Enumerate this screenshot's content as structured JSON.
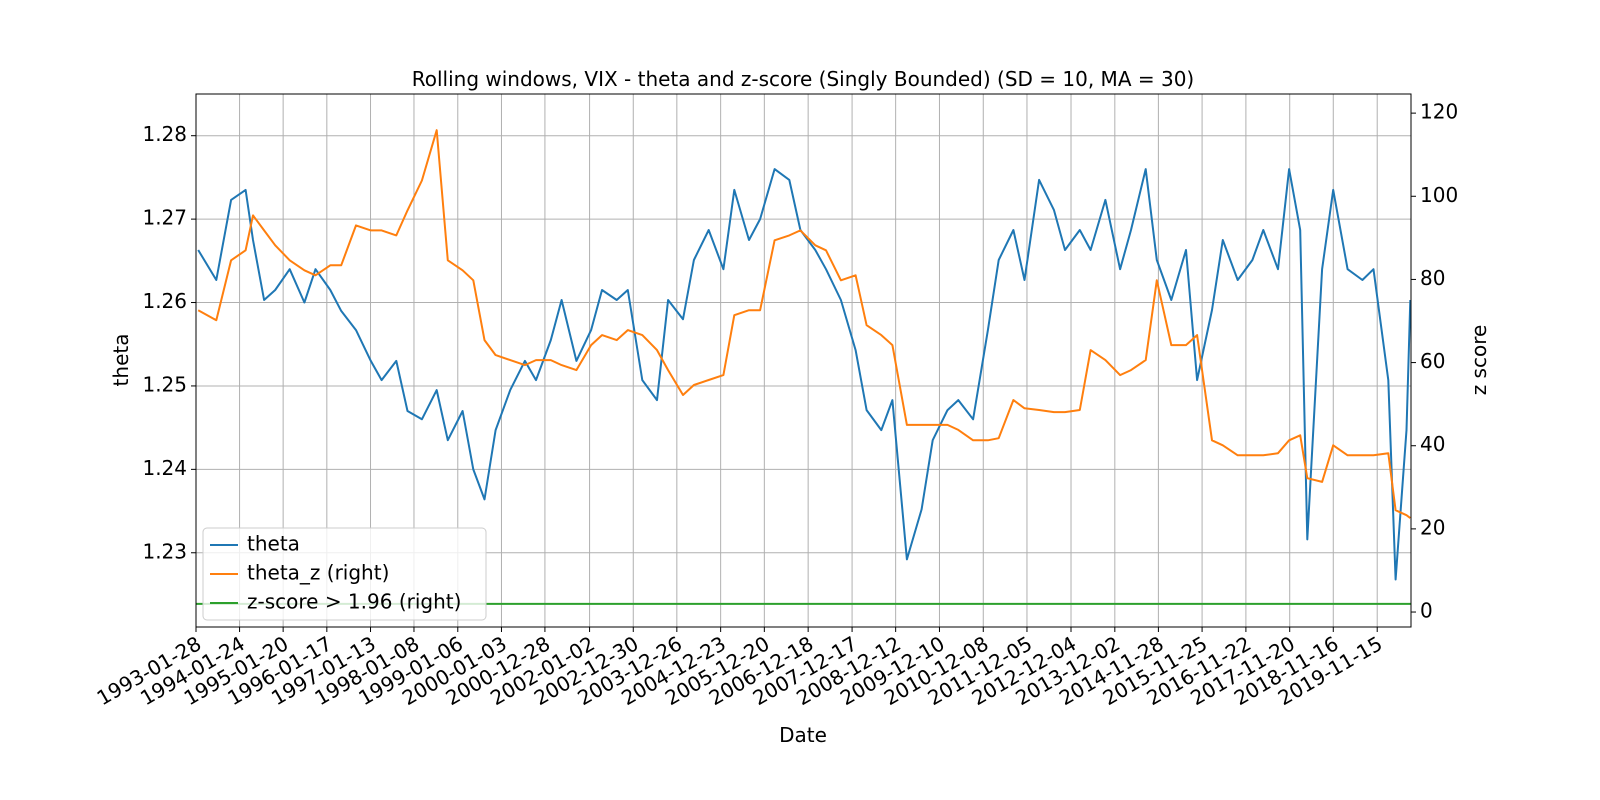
{
  "chart_data": {
    "type": "line",
    "title": "Rolling windows, VIX - theta and z-score (Singly Bounded) (SD = 10, MA = 30)",
    "xlabel": "Date",
    "ylabel": "theta",
    "y2label": "z score",
    "grid": true,
    "legend": "lower left",
    "xlim": [
      "1993-01-28",
      "2020-08-21"
    ],
    "xticks": [
      "1993-01-28",
      "1994-01-24",
      "1995-01-20",
      "1996-01-17",
      "1997-01-13",
      "1998-01-08",
      "1999-01-06",
      "2000-01-03",
      "2000-12-28",
      "2002-01-02",
      "2002-12-30",
      "2003-12-26",
      "2004-12-23",
      "2005-12-20",
      "2006-12-18",
      "2007-12-17",
      "2008-12-12",
      "2009-12-10",
      "2010-12-08",
      "2011-12-05",
      "2012-12-04",
      "2013-12-02",
      "2014-11-28",
      "2015-11-25",
      "2016-11-22",
      "2017-11-20",
      "2018-11-16",
      "2019-11-15"
    ],
    "ylim": [
      1.2211,
      1.285
    ],
    "yticks": [
      1.23,
      1.24,
      1.25,
      1.26,
      1.27,
      1.28
    ],
    "y2lim": [
      -3.6,
      124.6
    ],
    "y2ticks": [
      0,
      20,
      40,
      60,
      80,
      100,
      120
    ],
    "x": [
      "1993-02-15",
      "1993-07-15",
      "1993-11-15",
      "1994-03-15",
      "1994-05-15",
      "1994-08-15",
      "1994-11-15",
      "1995-03-15",
      "1995-07-15",
      "1995-10-15",
      "1996-02-15",
      "1996-05-15",
      "1996-09-15",
      "1997-01-15",
      "1997-04-15",
      "1997-08-15",
      "1997-11-15",
      "1998-03-15",
      "1998-07-15",
      "1998-10-15",
      "1999-02-15",
      "1999-05-15",
      "1999-08-15",
      "1999-11-15",
      "2000-03-15",
      "2000-07-15",
      "2000-10-15",
      "2001-02-15",
      "2001-05-15",
      "2001-09-15",
      "2002-01-15",
      "2002-04-15",
      "2002-08-15",
      "2002-11-15",
      "2003-03-15",
      "2003-07-15",
      "2003-10-15",
      "2004-02-15",
      "2004-05-15",
      "2004-09-15",
      "2005-01-15",
      "2005-04-15",
      "2005-08-15",
      "2005-11-15",
      "2006-03-15",
      "2006-07-15",
      "2006-10-15",
      "2007-02-15",
      "2007-05-15",
      "2007-09-15",
      "2008-01-15",
      "2008-04-15",
      "2008-08-15",
      "2008-11-15",
      "2009-03-15",
      "2009-07-15",
      "2009-10-15",
      "2010-02-15",
      "2010-05-15",
      "2010-09-15",
      "2011-01-15",
      "2011-04-15",
      "2011-08-15",
      "2011-11-15",
      "2012-03-15",
      "2012-07-15",
      "2012-10-15",
      "2013-02-15",
      "2013-05-15",
      "2013-09-15",
      "2014-01-15",
      "2014-04-15",
      "2014-08-15",
      "2014-11-15",
      "2015-03-15",
      "2015-07-15",
      "2015-10-15",
      "2016-02-15",
      "2016-05-15",
      "2016-09-15",
      "2017-01-15",
      "2017-04-15",
      "2017-08-15",
      "2017-11-15",
      "2018-02-15",
      "2018-04-15",
      "2018-08-15",
      "2018-11-15",
      "2019-03-15",
      "2019-07-15",
      "2019-10-15",
      "2020-02-15",
      "2020-04-15",
      "2020-07-15",
      "2020-08-15"
    ],
    "series": [
      {
        "name": "theta",
        "color": "#1f77b4",
        "axis": "y",
        "values": [
          1.2663,
          1.2627,
          1.2723,
          1.2735,
          1.2675,
          1.2603,
          1.2615,
          1.264,
          1.26,
          1.264,
          1.2615,
          1.259,
          1.2567,
          1.253,
          1.2507,
          1.253,
          1.247,
          1.246,
          1.2495,
          1.2435,
          1.247,
          1.24,
          1.2364,
          1.2447,
          1.2495,
          1.253,
          1.2507,
          1.2555,
          1.2603,
          1.253,
          1.2567,
          1.2615,
          1.2603,
          1.2615,
          1.2507,
          1.2483,
          1.2603,
          1.258,
          1.2651,
          1.2687,
          1.264,
          1.2735,
          1.2675,
          1.27,
          1.276,
          1.2747,
          1.2687,
          1.2663,
          1.264,
          1.2603,
          1.2543,
          1.2471,
          1.2447,
          1.2483,
          1.2292,
          1.2352,
          1.2435,
          1.2471,
          1.2483,
          1.246,
          1.2567,
          1.2651,
          1.2687,
          1.2627,
          1.2747,
          1.2711,
          1.2663,
          1.2687,
          1.2663,
          1.2723,
          1.264,
          1.2687,
          1.276,
          1.2651,
          1.2603,
          1.2663,
          1.2507,
          1.2591,
          1.2675,
          1.2627,
          1.2651,
          1.2687,
          1.264,
          1.276,
          1.2687,
          1.2316,
          1.264,
          1.2735,
          1.264,
          1.2627,
          1.264,
          1.2507,
          1.2268,
          1.2447,
          1.2603
        ]
      },
      {
        "name": "theta_z (right)",
        "color": "#ff7f0e",
        "axis": "y2",
        "values": [
          72.6,
          70.2,
          84.6,
          87,
          95.4,
          91.8,
          88.2,
          84.6,
          82.2,
          81,
          83.4,
          83.4,
          93,
          91.8,
          91.8,
          90.6,
          96.6,
          103.8,
          115.9,
          84.6,
          82.2,
          79.8,
          65.4,
          61.8,
          60.6,
          59.4,
          60.6,
          60.6,
          59.4,
          58.2,
          64.2,
          66.6,
          65.4,
          67.8,
          66.6,
          63,
          58.2,
          52.2,
          54.6,
          55.8,
          57,
          71.4,
          72.6,
          72.6,
          89.4,
          90.6,
          91.8,
          88.2,
          87,
          79.8,
          81,
          69,
          66.6,
          64.2,
          45,
          45,
          45,
          45,
          43.8,
          41.3,
          41.3,
          41.8,
          51,
          49,
          48.6,
          48.1,
          48.1,
          48.6,
          63,
          60.6,
          57,
          58.2,
          60.6,
          79.8,
          64.2,
          64.2,
          66.6,
          41.3,
          40.1,
          37.7,
          37.7,
          37.7,
          38.2,
          41.3,
          42.5,
          32.2,
          31.3,
          40.1,
          37.7,
          37.7,
          37.7,
          38.2,
          24.5,
          23.3,
          22.6
        ]
      },
      {
        "name": "z-score > 1.96 (right)",
        "color": "#2ca02c",
        "axis": "y2",
        "x": [
          "1993-01-28",
          "2020-08-21"
        ],
        "values": [
          1.96,
          1.96
        ]
      }
    ]
  }
}
